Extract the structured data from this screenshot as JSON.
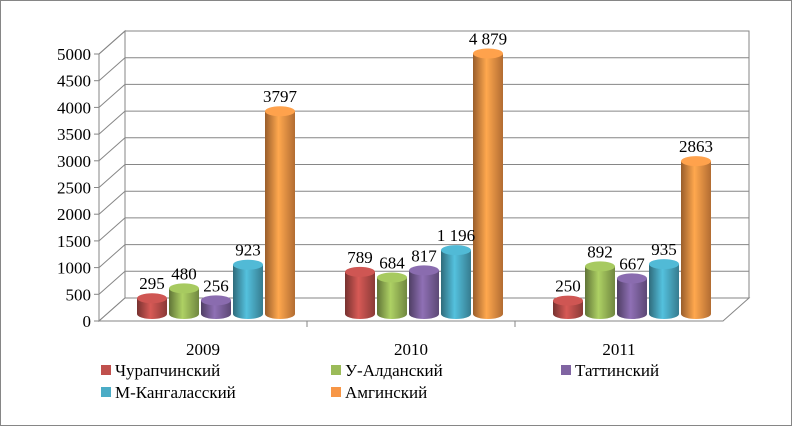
{
  "chart_data": {
    "type": "bar",
    "title": "",
    "xlabel": "",
    "ylabel": "",
    "ylim": [
      0,
      5000
    ],
    "yticks": [
      "0",
      "500",
      "1000",
      "1500",
      "2000",
      "2500",
      "3000",
      "3500",
      "4000",
      "4500",
      "5000"
    ],
    "categories": [
      "2009",
      "2010",
      "2011"
    ],
    "grid": true,
    "legend_position": "bottom",
    "series": [
      {
        "name": "Чурапчинский",
        "color": "#c0504d",
        "values": [
          295,
          789,
          250
        ],
        "labels": [
          "295",
          "789",
          "250"
        ]
      },
      {
        "name": "У-Алданский",
        "color": "#9bbb59",
        "values": [
          480,
          684,
          892
        ],
        "labels": [
          "480",
          "684",
          "892"
        ]
      },
      {
        "name": "Таттинский",
        "color": "#8064a2",
        "values": [
          256,
          817,
          667
        ],
        "labels": [
          "256",
          "817",
          "667"
        ]
      },
      {
        "name": "М-Кангаласский",
        "color": "#4bacc6",
        "values": [
          923,
          1196,
          935
        ],
        "labels": [
          "923",
          "1 196",
          "935"
        ]
      },
      {
        "name": "Амгинский",
        "color": "#f79646",
        "values": [
          3797,
          4879,
          2863
        ],
        "labels": [
          "3797",
          "4 879",
          "2863"
        ]
      }
    ]
  }
}
